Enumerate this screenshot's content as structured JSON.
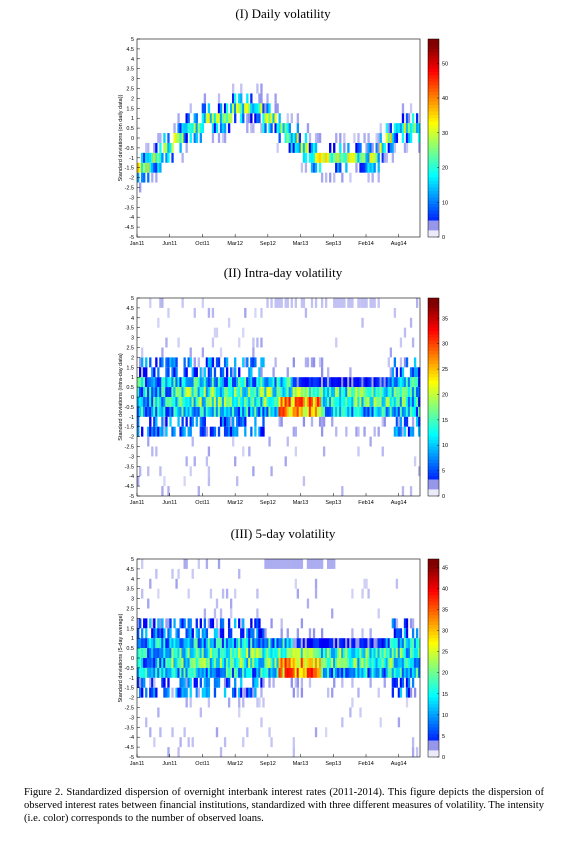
{
  "figure": {
    "caption": "Figure 2. Standardized dispersion of overnight interbank interest rates (2011-2014). This figure depicts the dispersion of observed interest rates between financial institutions, standardized with three different measures of volatility. The intensity (i.e. color) corresponds to the number of observed loans."
  },
  "chart_data": [
    {
      "type": "heatmap",
      "title": "(I) Daily volatility",
      "ylabel": "Standard deviations (on daily data))",
      "xlabel": "",
      "x_ticks": [
        "Jan11",
        "Jun11",
        "Oct11",
        "Mar12",
        "Sep12",
        "Mar13",
        "Sep13",
        "Feb14",
        "Aug14"
      ],
      "y_ticks": [
        "5",
        "4.5",
        "4",
        "3.5",
        "3",
        "2.5",
        "2",
        "1.5",
        "1",
        "0.5",
        "0",
        "-0.5",
        "-1",
        "-1.5",
        "-2",
        "-2.5",
        "-3",
        "-3.5",
        "-4",
        "-4.5",
        "-5"
      ],
      "ylim": [
        -5,
        5
      ],
      "colorbar_ticks": [
        "0",
        "10",
        "20",
        "30",
        "40",
        "50"
      ],
      "colorbar_max": 57,
      "colormap": "jet",
      "band_path": [
        [
          0,
          -1.6
        ],
        [
          0.08,
          -1.0
        ],
        [
          0.13,
          -0.2
        ],
        [
          0.18,
          0.5
        ],
        [
          0.26,
          0.9
        ],
        [
          0.33,
          1.2
        ],
        [
          0.4,
          1.6
        ],
        [
          0.46,
          1.1
        ],
        [
          0.52,
          0.4
        ],
        [
          0.58,
          -0.4
        ],
        [
          0.63,
          -1.1
        ],
        [
          0.7,
          -1.1
        ],
        [
          0.78,
          -1.1
        ],
        [
          0.85,
          -0.9
        ],
        [
          0.89,
          0.0
        ],
        [
          0.93,
          0.5
        ],
        [
          1.0,
          0.5
        ]
      ]
    },
    {
      "type": "heatmap",
      "title": "(II) Intra-day volatility",
      "ylabel": "Standard deviations (intra-day data)",
      "xlabel": "",
      "x_ticks": [
        "Jan11",
        "Jun11",
        "Oct11",
        "Mar12",
        "Sep12",
        "Mar13",
        "Sep13",
        "Feb14",
        "Aug14"
      ],
      "y_ticks": [
        "5",
        "4.5",
        "4",
        "3.5",
        "3",
        "2.5",
        "2",
        "1.5",
        "1",
        "0.5",
        "0",
        "-0.5",
        "-1",
        "-1.5",
        "-2",
        "-2.5",
        "-3",
        "-3.5",
        "-4",
        "-4.5",
        "-5"
      ],
      "ylim": [
        -5,
        5
      ],
      "colorbar_ticks": [
        "0",
        "5",
        "10",
        "15",
        "20",
        "25",
        "30",
        "35"
      ],
      "colorbar_max": 39,
      "colormap": "jet",
      "core_band": [
        -1.0,
        1.0
      ],
      "hot_region": [
        0.5,
        0.65
      ]
    },
    {
      "type": "heatmap",
      "title": "(III) 5-day volatility",
      "ylabel": "Standard deviations (5-day average)",
      "xlabel": "",
      "x_ticks": [
        "Jan11",
        "Jun11",
        "Oct11",
        "Mar12",
        "Sep12",
        "Mar13",
        "Sep13",
        "Feb14",
        "Aug14"
      ],
      "y_ticks": [
        "5",
        "4.5",
        "4",
        "3.5",
        "3",
        "2.5",
        "2",
        "1.5",
        "1",
        "0.5",
        "0",
        "-0.5",
        "-1",
        "-1.5",
        "-2",
        "-2.5",
        "-3",
        "-3.5",
        "-4",
        "-4.5",
        "-5"
      ],
      "ylim": [
        -5,
        5
      ],
      "colorbar_ticks": [
        "0",
        "5",
        "10",
        "15",
        "20",
        "25",
        "30",
        "35",
        "40",
        "45"
      ],
      "colorbar_max": 47,
      "colormap": "jet",
      "core_band": [
        -1.0,
        1.0
      ],
      "hot_region": [
        0.5,
        0.65
      ]
    }
  ]
}
